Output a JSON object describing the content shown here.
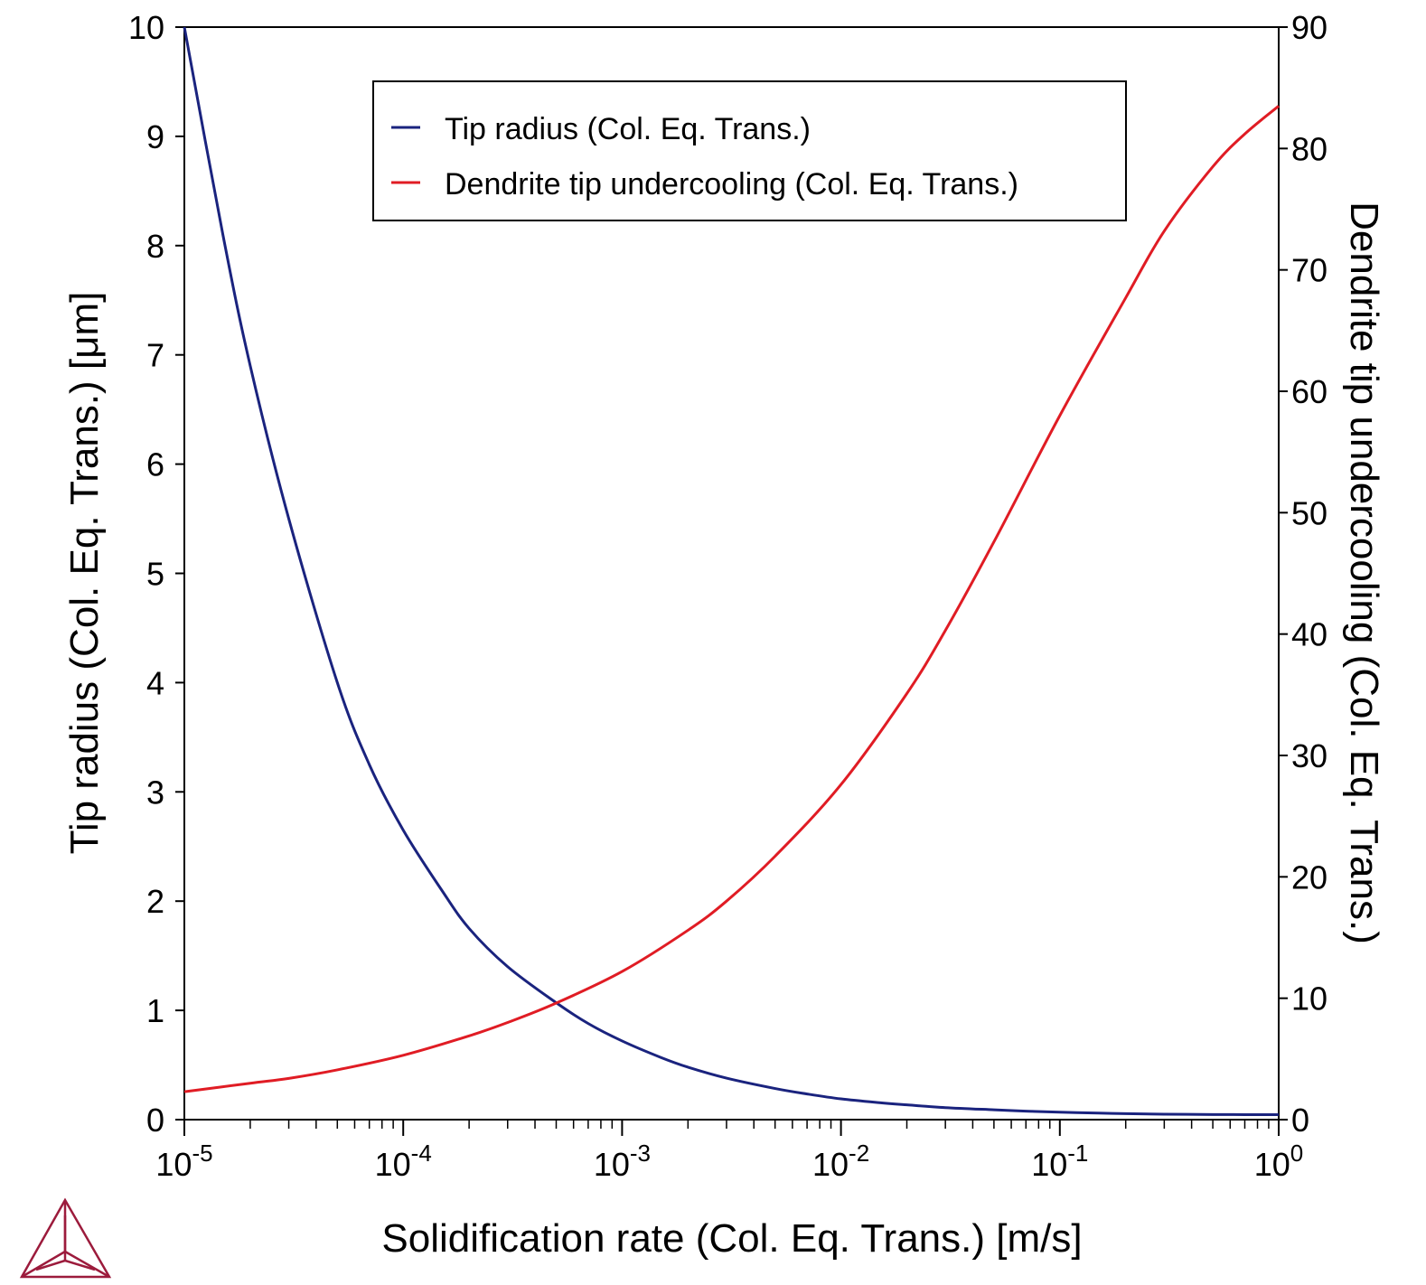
{
  "chart_data": {
    "type": "line",
    "title": "",
    "xlabel": "Solidification rate (Col. Eq. Trans.) [m/s]",
    "ylabel": "Tip radius (Col. Eq. Trans.) [μm]",
    "y2label": "Dendrite tip undercooling (Col. Eq. Trans.)",
    "x_scale": "log",
    "xlim": [
      1e-05,
      1
    ],
    "ylim": [
      0,
      10
    ],
    "y2lim": [
      0,
      90
    ],
    "grid": false,
    "legend_position": "top-center",
    "x_ticks": [
      {
        "base": "10",
        "exp": "-5",
        "value": 1e-05
      },
      {
        "base": "10",
        "exp": "-4",
        "value": 0.0001
      },
      {
        "base": "10",
        "exp": "-3",
        "value": 0.001
      },
      {
        "base": "10",
        "exp": "-2",
        "value": 0.01
      },
      {
        "base": "10",
        "exp": "-1",
        "value": 0.1
      },
      {
        "base": "10",
        "exp": "0",
        "value": 1
      }
    ],
    "y_ticks": [
      "0",
      "1",
      "2",
      "3",
      "4",
      "5",
      "6",
      "7",
      "8",
      "9",
      "10"
    ],
    "y2_ticks": [
      "0",
      "10",
      "20",
      "30",
      "40",
      "50",
      "60",
      "70",
      "80",
      "90"
    ],
    "series": [
      {
        "name": "Tip radius (Col. Eq. Trans.)",
        "axis": "left",
        "color": "#1a237e",
        "x": [
          1e-05,
          1.5e-05,
          2e-05,
          3e-05,
          5e-05,
          7e-05,
          0.0001,
          0.00015,
          0.0002,
          0.0003,
          0.0005,
          0.0007,
          0.001,
          0.0015,
          0.002,
          0.003,
          0.005,
          0.007,
          0.01,
          0.015,
          0.02,
          0.03,
          0.05,
          0.07,
          0.1,
          0.15,
          0.2,
          0.3,
          0.5,
          0.7,
          1
        ],
        "y": [
          10.0,
          8.1,
          6.9,
          5.5,
          4.0,
          3.25,
          2.65,
          2.1,
          1.75,
          1.4,
          1.07,
          0.88,
          0.72,
          0.57,
          0.48,
          0.38,
          0.285,
          0.235,
          0.19,
          0.155,
          0.135,
          0.11,
          0.09,
          0.078,
          0.068,
          0.06,
          0.055,
          0.05,
          0.047,
          0.046,
          0.045
        ]
      },
      {
        "name": "Dendrite tip undercooling (Col. Eq. Trans.)",
        "axis": "right",
        "color": "#e01c24",
        "x": [
          1e-05,
          2e-05,
          3e-05,
          5e-05,
          0.0001,
          0.0002,
          0.0003,
          0.0005,
          0.001,
          0.002,
          0.003,
          0.005,
          0.01,
          0.02,
          0.03,
          0.05,
          0.1,
          0.2,
          0.3,
          0.5,
          0.7,
          1
        ],
        "y": [
          2.3,
          3.0,
          3.4,
          4.1,
          5.3,
          6.9,
          8.0,
          9.6,
          12.2,
          15.6,
          18.0,
          21.7,
          27.6,
          35.1,
          40.3,
          47.6,
          58.0,
          67.7,
          73.2,
          78.5,
          81.2,
          83.5
        ]
      }
    ]
  }
}
